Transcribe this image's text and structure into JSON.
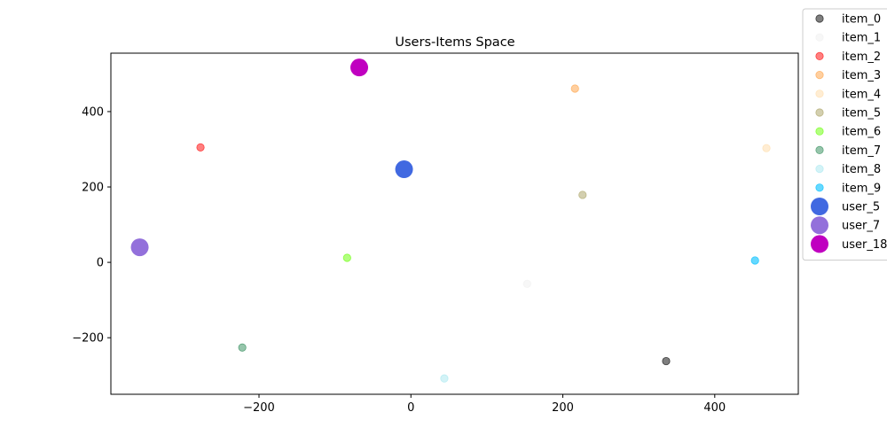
{
  "chart_data": {
    "type": "scatter",
    "title": "Users-Items Space",
    "xlabel": "",
    "ylabel": "",
    "xlim": [
      -395,
      510
    ],
    "ylim": [
      -350,
      555
    ],
    "xticks": [
      -200,
      0,
      200,
      400
    ],
    "yticks": [
      -200,
      0,
      200,
      400
    ],
    "grid": false,
    "legend_position": "upper-right-outside",
    "series": [
      {
        "name": "item_0",
        "color": "#000000",
        "alpha": 0.5,
        "kind": "item",
        "points": [
          {
            "x": 336,
            "y": -262
          }
        ]
      },
      {
        "name": "item_1",
        "color": "#f0f0f0",
        "alpha": 0.5,
        "kind": "item",
        "points": [
          {
            "x": 153,
            "y": -57
          }
        ]
      },
      {
        "name": "item_2",
        "color": "#ff0000",
        "alpha": 0.5,
        "kind": "item",
        "points": [
          {
            "x": -277,
            "y": 305
          }
        ]
      },
      {
        "name": "item_3",
        "color": "#ffa040",
        "alpha": 0.5,
        "kind": "item",
        "points": [
          {
            "x": 216,
            "y": 461
          }
        ]
      },
      {
        "name": "item_4",
        "color": "#ffdca8",
        "alpha": 0.5,
        "kind": "item",
        "points": [
          {
            "x": 468,
            "y": 303
          }
        ]
      },
      {
        "name": "item_5",
        "color": "#a8a060",
        "alpha": 0.5,
        "kind": "item",
        "points": [
          {
            "x": 226,
            "y": 179
          }
        ]
      },
      {
        "name": "item_6",
        "color": "#66ff00",
        "alpha": 0.5,
        "kind": "item",
        "points": [
          {
            "x": -84,
            "y": 12
          }
        ]
      },
      {
        "name": "item_7",
        "color": "#2e8b57",
        "alpha": 0.5,
        "kind": "item",
        "points": [
          {
            "x": -222,
            "y": -226
          }
        ]
      },
      {
        "name": "item_8",
        "color": "#a8e8f0",
        "alpha": 0.5,
        "kind": "item",
        "points": [
          {
            "x": 44,
            "y": -308
          }
        ]
      },
      {
        "name": "item_9",
        "color": "#00bfff",
        "alpha": 0.6,
        "kind": "item",
        "points": [
          {
            "x": 453,
            "y": 5
          }
        ]
      },
      {
        "name": "user_5",
        "color": "#4169e1",
        "alpha": 1.0,
        "kind": "user",
        "points": [
          {
            "x": -9,
            "y": 247
          }
        ]
      },
      {
        "name": "user_7",
        "color": "#9370db",
        "alpha": 1.0,
        "kind": "user",
        "points": [
          {
            "x": -357,
            "y": 40
          }
        ]
      },
      {
        "name": "user_18",
        "color": "#c000c0",
        "alpha": 1.0,
        "kind": "user",
        "points": [
          {
            "x": -68,
            "y": 517
          }
        ]
      }
    ]
  }
}
